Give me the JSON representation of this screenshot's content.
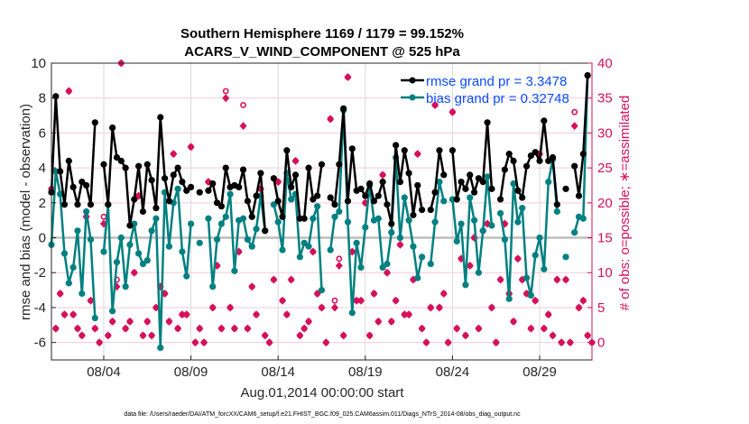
{
  "chart_data": {
    "type": "line",
    "title": [
      "Southern Hemisphere 1169 / 1179 = 99.152%",
      "ACARS_V_WIND_COMPONENT @ 525 hPa"
    ],
    "xlabel": "Aug.01,2014 00:00:00 start",
    "ylabel": "rmse and bias (model - observation)",
    "ylabel_right": "# of obs: o=possible; ∗=assimilated",
    "footnote": "data file: /Users/raeder/DAI/ATM_forcXX/CAM6_setup/f.e21.FHIST_BGC.f09_025.CAM6assim.011/Diags_NTrS_2014-08/obs_diag_output.nc",
    "x_unit": "days since Aug.01,2014 00:00",
    "x_step_days": 0.25,
    "xlim": [
      0,
      31
    ],
    "ylim": [
      -7,
      10
    ],
    "ylim_right": [
      -2.5,
      40
    ],
    "xticks": [
      {
        "day": 3,
        "label": "08/04"
      },
      {
        "day": 8,
        "label": "08/09"
      },
      {
        "day": 13,
        "label": "08/14"
      },
      {
        "day": 18,
        "label": "08/19"
      },
      {
        "day": 23,
        "label": "08/24"
      },
      {
        "day": 28,
        "label": "08/29"
      }
    ],
    "yticks": [
      "-6",
      "-4",
      "-2",
      "0",
      "2",
      "4",
      "6",
      "8",
      "10"
    ],
    "yticks_right": [
      "0",
      "5",
      "10",
      "15",
      "20",
      "25",
      "30",
      "35",
      "40"
    ],
    "grid": true,
    "legend_placement": "top-right",
    "colors": {
      "rmse": "#000000",
      "bias": "#008080",
      "obs": "#d6105a",
      "legend_text": "#0a4bff",
      "zero_line": "#bdbdbd"
    },
    "series": [
      {
        "name": "rmse grand pr = 3.3478",
        "values": [
          2.6,
          8.1,
          3.8,
          1.9,
          4.4,
          2.9,
          1.9,
          3.2,
          3.0,
          1.9,
          6.6,
          null,
          4.2,
          1.9,
          6.3,
          4.6,
          4.4,
          4.0,
          0.7,
          2.2,
          4.1,
          1.5,
          4.2,
          3.3,
          1.7,
          6.9,
          3.4,
          2.1,
          3.6,
          4.0,
          3.2,
          2.7,
          2.9,
          null,
          2.6,
          null,
          2.7,
          3.1,
          2.0,
          1.8,
          4.0,
          2.9,
          3.0,
          2.9,
          3.9,
          2.1,
          1.2,
          2.4,
          3.7,
          0.4,
          null,
          3.4,
          2.1,
          1.2,
          5.0,
          2.9,
          3.6,
          1.1,
          1.1,
          4.0,
          2.2,
          2.4,
          4.2,
          null,
          2.3,
          1.9,
          4.2,
          7.4,
          2.1,
          5.1,
          2.7,
          2.8,
          2.4,
          3.1,
          2.1,
          2.4,
          3.2,
          1.9,
          0.8,
          5.3,
          3.2,
          5.0,
          3.7,
          1.3,
          3.0,
          1.6,
          null,
          1.6,
          2.6,
          5.0,
          3.6,
          null,
          5.0,
          2.2,
          3.2,
          2.8,
          3.6,
          2.6,
          3.4,
          3.2,
          6.6,
          2.8,
          null,
          2.2,
          3.9,
          4.8,
          4.4,
          2.7,
          2.3,
          4.1,
          4.7,
          4.9,
          4.4,
          6.7,
          4.4,
          4.6,
          1.9,
          null,
          2.8,
          null,
          4.1,
          2.4,
          4.8,
          9.3,
          null
        ]
      },
      {
        "name": "bias grand pr = 0.32748",
        "values": [
          -0.4,
          3.8,
          2.5,
          -0.9,
          -2.6,
          -1.7,
          0.4,
          -3.2,
          1.5,
          -0.1,
          -4.6,
          null,
          -0.8,
          1.9,
          -4.2,
          -1.4,
          0.0,
          -2.8,
          -0.4,
          0.8,
          -0.9,
          -1.5,
          -1.3,
          0.4,
          1.1,
          -6.3,
          2.6,
          -0.5,
          2.0,
          2.8,
          -0.8,
          -2.2,
          0.8,
          null,
          -0.3,
          null,
          1.1,
          -2.8,
          -0.1,
          0.8,
          1.2,
          2.5,
          -1.9,
          1.0,
          1.1,
          -0.1,
          -0.5,
          0.5,
          2.4,
          0.4,
          null,
          1.9,
          0.9,
          -0.7,
          3.7,
          2.2,
          2.5,
          -1.1,
          -0.3,
          -0.5,
          1.1,
          1.8,
          -3.0,
          null,
          -0.7,
          1.2,
          1.5,
          7.3,
          0.9,
          -4.3,
          -0.3,
          -1.7,
          0.6,
          3.0,
          1.0,
          1.1,
          -1.7,
          -1.5,
          0.3,
          4.6,
          0.0,
          2.3,
          1.0,
          -0.5,
          -2.3,
          -1.1,
          null,
          -1.5,
          0.9,
          3.2,
          2.1,
          null,
          2.2,
          -0.2,
          0.8,
          -2.7,
          2.3,
          1.0,
          -2.0,
          0.4,
          3.5,
          0.7,
          null,
          1.4,
          -0.1,
          -3.5,
          3.1,
          0.9,
          1.7,
          -2.3,
          -3.3,
          -1.0,
          0.0,
          -1.8,
          3.2,
          4.5,
          1.5,
          null,
          -1.1,
          null,
          0.3,
          1.2,
          1.1,
          9.3,
          null
        ]
      },
      {
        "name": "obs assimilated",
        "axis": "right",
        "values": [
          22,
          2,
          7,
          4,
          36,
          4,
          2,
          1,
          18,
          6,
          2,
          0,
          17,
          1,
          3,
          8,
          40,
          2,
          3,
          10,
          21,
          1,
          3,
          1,
          5,
          8,
          7,
          3,
          27,
          2,
          4,
          4,
          28,
          0,
          2,
          0,
          23,
          5,
          11,
          2,
          35,
          5,
          2,
          13,
          31,
          2,
          8,
          4,
          22,
          1,
          0,
          9,
          23,
          6,
          4,
          9,
          26,
          1,
          2,
          3,
          13,
          7,
          5,
          0,
          32,
          5,
          11,
          1,
          38,
          13,
          6,
          6,
          20,
          1,
          7,
          3,
          24,
          10,
          3,
          6,
          14,
          4,
          4,
          9,
          27,
          2,
          0,
          5,
          34,
          5,
          7,
          0,
          33,
          2,
          12,
          1,
          11,
          15,
          2,
          16,
          17,
          5,
          0,
          9,
          17,
          7,
          3,
          12,
          9,
          7,
          2,
          6,
          27,
          2,
          4,
          1,
          9,
          0,
          9,
          0,
          31,
          5,
          6,
          1,
          0
        ]
      },
      {
        "name": "obs possible",
        "axis": "right",
        "values": [
          22,
          2,
          7,
          4,
          36,
          4,
          2,
          1,
          18,
          6,
          2,
          0,
          18,
          1,
          3,
          9,
          40,
          2,
          3,
          10,
          21,
          1,
          3,
          1,
          5,
          8,
          7,
          3,
          27,
          2,
          4,
          4,
          28,
          0,
          2,
          0,
          23,
          5,
          11,
          2,
          36,
          5,
          2,
          13,
          34,
          2,
          8,
          4,
          22,
          1,
          0,
          9,
          23,
          6,
          4,
          9,
          26,
          1,
          2,
          3,
          13,
          7,
          5,
          0,
          32,
          6,
          12,
          1,
          38,
          13,
          6,
          6,
          20,
          1,
          7,
          3,
          24,
          10,
          3,
          6,
          14,
          4,
          4,
          9,
          27,
          2,
          0,
          5,
          34,
          5,
          7,
          0,
          33,
          2,
          12,
          1,
          11,
          15,
          2,
          16,
          17,
          5,
          0,
          9,
          17,
          7,
          3,
          12,
          9,
          7,
          2,
          6,
          27,
          2,
          4,
          1,
          9,
          0,
          9,
          0,
          33,
          5,
          6,
          1,
          0
        ]
      }
    ]
  }
}
